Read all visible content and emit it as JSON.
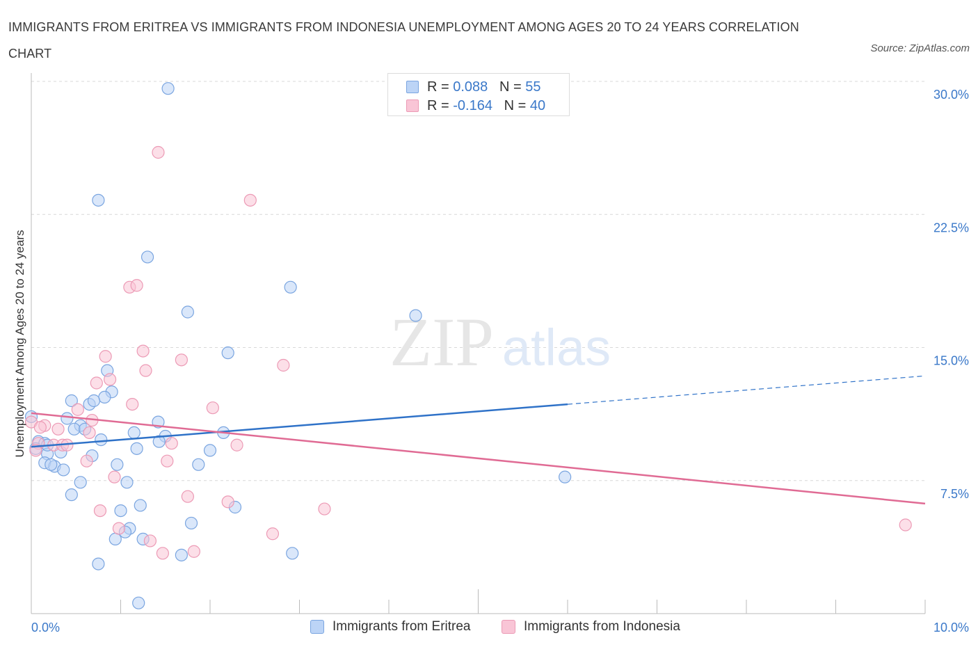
{
  "title": "IMMIGRANTS FROM ERITREA VS IMMIGRANTS FROM INDONESIA UNEMPLOYMENT AMONG AGES 20 TO 24 YEARS CORRELATION CHART",
  "source": "Source: ZipAtlas.com",
  "watermark": {
    "zip": "ZIP",
    "atlas": "atlas"
  },
  "colors": {
    "eritrea_fill": "#bcd4f6",
    "eritrea_stroke": "#7aa5e0",
    "eritrea_line": "#2f72c8",
    "indonesia_fill": "#f9c5d6",
    "indonesia_stroke": "#ec9ab5",
    "indonesia_line": "#e06b94",
    "grid": "#d8d8d8",
    "axis_label": "#3a78c9"
  },
  "legend": {
    "rows": [
      {
        "r_label": "R = ",
        "r_value": "0.088",
        "n_label": "N = ",
        "n_value": "55"
      },
      {
        "r_label": "R = ",
        "r_value": "-0.164",
        "n_label": "N = ",
        "n_value": "40"
      }
    ]
  },
  "chart_data": {
    "type": "scatter",
    "title": "IMMIGRANTS FROM ERITREA VS IMMIGRANTS FROM INDONESIA UNEMPLOYMENT AMONG AGES 20 TO 24 YEARS CORRELATION CHART",
    "xlabel": "",
    "ylabel": "Unemployment Among Ages 20 to 24 years",
    "xlim": [
      0,
      10
    ],
    "ylim": [
      0,
      30
    ],
    "x_tick_labels": [
      {
        "value": 0,
        "label": "0.0%"
      },
      {
        "value": 10,
        "label": "10.0%"
      }
    ],
    "y_tick_labels": [
      {
        "value": 7.5,
        "label": "7.5%"
      },
      {
        "value": 15,
        "label": "15.0%"
      },
      {
        "value": 22.5,
        "label": "22.5%"
      },
      {
        "value": 30,
        "label": "30.0%"
      }
    ],
    "grid": true,
    "legend_position": "top-center",
    "series": [
      {
        "name": "Immigrants from Eritrea",
        "r": 0.088,
        "n": 55,
        "trend": {
          "x0": 0,
          "y0": 9.4,
          "x1": 6.0,
          "y1": 11.8,
          "dash_x1": 10,
          "dash_y1": 13.4
        },
        "points": [
          [
            1.53,
            29.6
          ],
          [
            0.75,
            23.3
          ],
          [
            1.3,
            20.1
          ],
          [
            2.9,
            18.4
          ],
          [
            1.75,
            17.0
          ],
          [
            4.3,
            16.8
          ],
          [
            2.2,
            14.7
          ],
          [
            0.85,
            13.7
          ],
          [
            0.9,
            12.5
          ],
          [
            0.65,
            11.8
          ],
          [
            0.45,
            12.0
          ],
          [
            0.82,
            12.2
          ],
          [
            0.7,
            12.0
          ],
          [
            0.0,
            11.1
          ],
          [
            0.4,
            11.0
          ],
          [
            0.55,
            10.6
          ],
          [
            0.48,
            10.4
          ],
          [
            0.6,
            10.4
          ],
          [
            1.42,
            10.8
          ],
          [
            1.15,
            10.2
          ],
          [
            1.5,
            10.0
          ],
          [
            2.15,
            10.2
          ],
          [
            0.08,
            9.7
          ],
          [
            0.15,
            9.6
          ],
          [
            0.78,
            9.8
          ],
          [
            1.43,
            9.7
          ],
          [
            0.05,
            9.3
          ],
          [
            0.18,
            9.0
          ],
          [
            0.33,
            9.1
          ],
          [
            1.18,
            9.3
          ],
          [
            2.0,
            9.2
          ],
          [
            0.68,
            8.9
          ],
          [
            0.15,
            8.5
          ],
          [
            0.26,
            8.3
          ],
          [
            0.36,
            8.1
          ],
          [
            0.96,
            8.4
          ],
          [
            1.87,
            8.4
          ],
          [
            0.55,
            7.4
          ],
          [
            1.07,
            7.4
          ],
          [
            5.97,
            7.7
          ],
          [
            0.45,
            6.7
          ],
          [
            1.22,
            6.1
          ],
          [
            2.28,
            6.0
          ],
          [
            1.0,
            5.8
          ],
          [
            1.79,
            5.1
          ],
          [
            1.1,
            4.8
          ],
          [
            0.94,
            4.2
          ],
          [
            1.25,
            4.2
          ],
          [
            1.68,
            3.3
          ],
          [
            2.92,
            3.4
          ],
          [
            0.75,
            2.8
          ],
          [
            1.2,
            0.6
          ],
          [
            0.18,
            9.5
          ],
          [
            0.22,
            8.4
          ],
          [
            1.05,
            4.6
          ]
        ]
      },
      {
        "name": "Immigrants from Indonesia",
        "r": -0.164,
        "n": 40,
        "trend": {
          "x0": 0,
          "y0": 11.3,
          "x1": 10,
          "y1": 6.2
        },
        "points": [
          [
            1.42,
            26.0
          ],
          [
            2.45,
            23.3
          ],
          [
            1.1,
            18.4
          ],
          [
            1.18,
            18.5
          ],
          [
            1.25,
            14.8
          ],
          [
            0.83,
            14.5
          ],
          [
            1.68,
            14.3
          ],
          [
            2.82,
            14.0
          ],
          [
            1.28,
            13.7
          ],
          [
            0.88,
            13.2
          ],
          [
            0.73,
            13.0
          ],
          [
            1.13,
            11.8
          ],
          [
            2.03,
            11.6
          ],
          [
            0.52,
            11.5
          ],
          [
            0.0,
            10.8
          ],
          [
            0.15,
            10.6
          ],
          [
            0.68,
            10.9
          ],
          [
            0.1,
            10.5
          ],
          [
            0.3,
            10.4
          ],
          [
            0.65,
            10.2
          ],
          [
            0.08,
            9.6
          ],
          [
            0.25,
            9.5
          ],
          [
            0.35,
            9.5
          ],
          [
            0.4,
            9.5
          ],
          [
            1.57,
            9.6
          ],
          [
            2.3,
            9.5
          ],
          [
            0.05,
            9.2
          ],
          [
            0.62,
            8.6
          ],
          [
            1.52,
            8.6
          ],
          [
            0.93,
            7.7
          ],
          [
            1.75,
            6.6
          ],
          [
            2.2,
            6.3
          ],
          [
            3.28,
            5.9
          ],
          [
            0.77,
            5.8
          ],
          [
            0.98,
            4.8
          ],
          [
            2.7,
            4.5
          ],
          [
            1.33,
            4.1
          ],
          [
            1.47,
            3.4
          ],
          [
            1.82,
            3.5
          ],
          [
            9.78,
            5.0
          ]
        ]
      }
    ]
  }
}
